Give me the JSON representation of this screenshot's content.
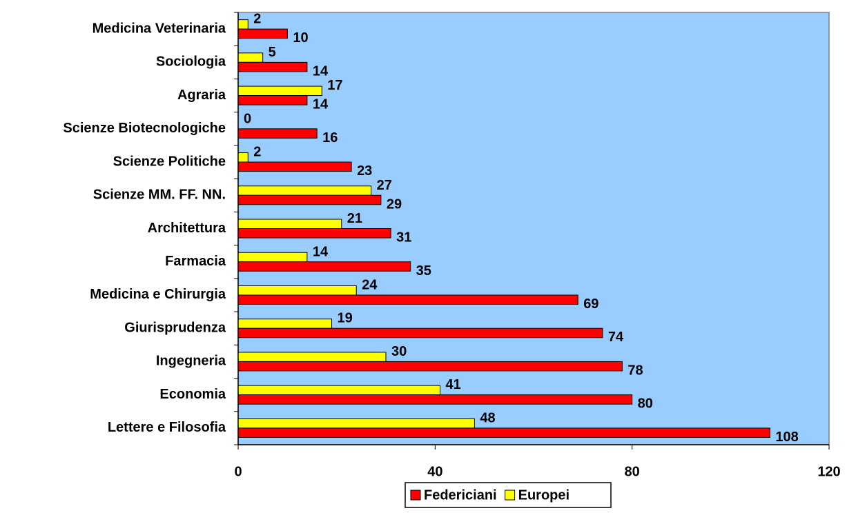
{
  "chart_data": {
    "type": "hbar",
    "categories": [
      "Medicina Veterinaria",
      "Sociologia",
      "Agraria",
      "Scienze Biotecnologiche",
      "Scienze Politiche",
      "Scienze MM. FF. NN.",
      "Architettura",
      "Farmacia",
      "Medicina e Chirurgia",
      "Giurisprudenza",
      "Ingegneria",
      "Economia",
      "Lettere e Filosofia"
    ],
    "series": [
      {
        "name": "Federiciani",
        "color": "#ff0000",
        "values": [
          10,
          14,
          14,
          16,
          23,
          29,
          31,
          35,
          69,
          74,
          78,
          80,
          108
        ]
      },
      {
        "name": "Europei",
        "color": "#ffff00",
        "values": [
          2,
          5,
          17,
          0,
          2,
          27,
          21,
          14,
          24,
          19,
          30,
          41,
          48
        ]
      }
    ],
    "xlim": [
      0,
      120
    ],
    "xticks": [
      0,
      40,
      80,
      120
    ],
    "plot_background": "#99ccff",
    "legend": "bottom"
  }
}
